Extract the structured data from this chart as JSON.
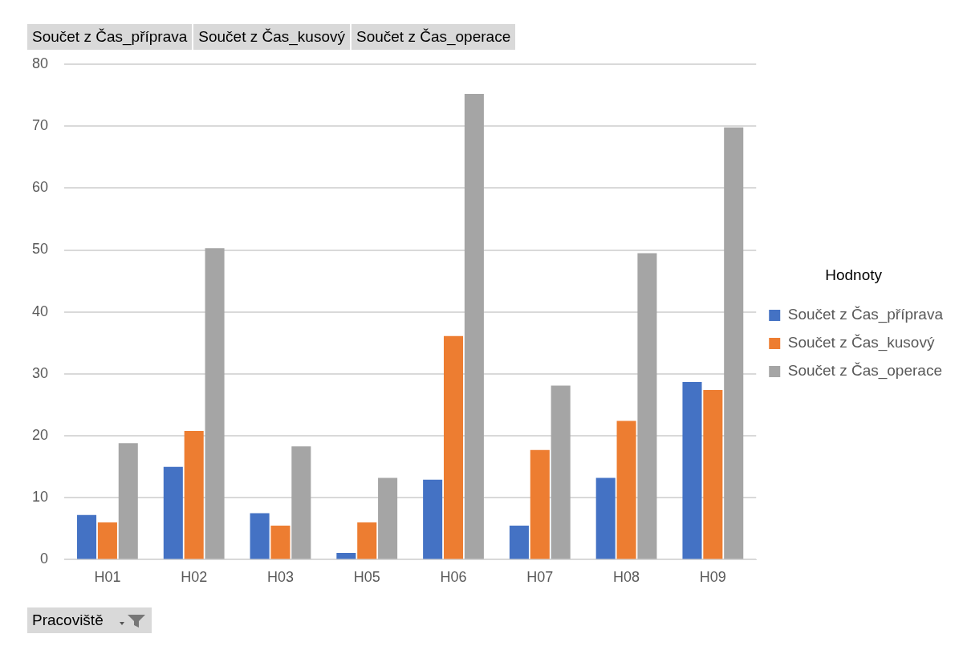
{
  "chart_data": {
    "type": "bar",
    "categories": [
      "H01",
      "H02",
      "H03",
      "H05",
      "H06",
      "H07",
      "H08",
      "H09"
    ],
    "series": [
      {
        "name": "Součet z Čas_příprava",
        "color": "#4472c4",
        "values": [
          7.2,
          15.0,
          7.5,
          1.1,
          12.9,
          5.5,
          13.2,
          28.7
        ]
      },
      {
        "name": "Součet z Čas_kusový",
        "color": "#ed7d31",
        "values": [
          6.0,
          20.8,
          5.5,
          6.0,
          36.1,
          17.7,
          22.4,
          27.4
        ]
      },
      {
        "name": "Součet z Čas_operace",
        "color": "#a5a5a5",
        "values": [
          18.8,
          50.3,
          18.3,
          13.2,
          75.2,
          28.1,
          49.5,
          69.8
        ]
      }
    ],
    "ylim": [
      0,
      80
    ],
    "yticks": [
      0,
      10,
      20,
      30,
      40,
      50,
      60,
      70,
      80
    ],
    "grid": "y",
    "legend": "right",
    "legend_title": "Hodnoty",
    "annotations": [
      "Součet z Čas_příprava",
      "Součet z Čas_kusový",
      "Součet z Čas_operace",
      "Pracoviště"
    ]
  }
}
